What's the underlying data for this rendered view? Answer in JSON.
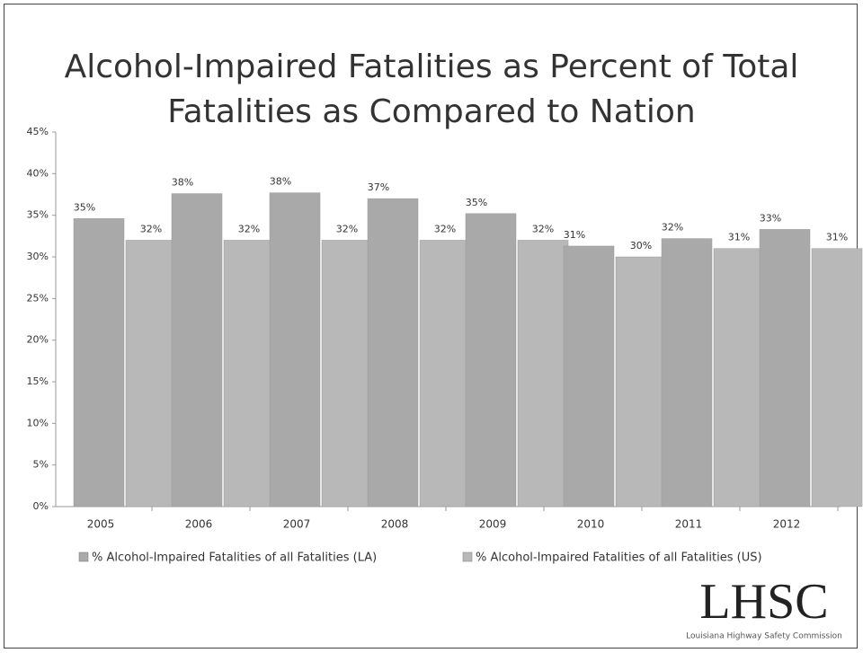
{
  "chart_data": {
    "type": "bar",
    "title": "Alcohol-Impaired Fatalities as Percent of Total Fatalities as Compared to Nation",
    "categories": [
      "2005",
      "2006",
      "2007",
      "2008",
      "2009",
      "2010",
      "2011",
      "2012"
    ],
    "series": [
      {
        "name": "% Alcohol-Impaired Fatalities of all Fatalities (LA)",
        "color": "#a9a9a9",
        "values": [
          34.6,
          37.6,
          37.7,
          37,
          35.2,
          31.3,
          32.2,
          33.3
        ],
        "value_labels": [
          "35%",
          "38%",
          "38%",
          "37%",
          "35%",
          "31%",
          "32%",
          "33%"
        ]
      },
      {
        "name": "% Alcohol-Impaired Fatalities of all Fatalities (US)",
        "color": "#b8b8b8",
        "values": [
          32,
          32,
          32,
          32,
          32,
          30,
          31,
          31
        ],
        "value_labels": [
          "32%",
          "32%",
          "32%",
          "32%",
          "32%",
          "30%",
          "31%",
          "31%"
        ]
      }
    ],
    "ylim": [
      0,
      45
    ],
    "yticks": [
      {
        "value": 0,
        "label": "0%"
      },
      {
        "value": 5,
        "label": "5%"
      },
      {
        "value": 10,
        "label": "10%"
      },
      {
        "value": 15,
        "label": "15%"
      },
      {
        "value": 20,
        "label": "20%"
      },
      {
        "value": 25,
        "label": "25%"
      },
      {
        "value": 30,
        "label": "30%"
      },
      {
        "value": 35,
        "label": "35%"
      },
      {
        "value": 40,
        "label": "40%"
      },
      {
        "value": 45,
        "label": "45%"
      }
    ],
    "grid": false,
    "legend": "bottom"
  },
  "logo": {
    "text": "LHSC",
    "subtitle": "Louisiana Highway Safety Commission"
  }
}
